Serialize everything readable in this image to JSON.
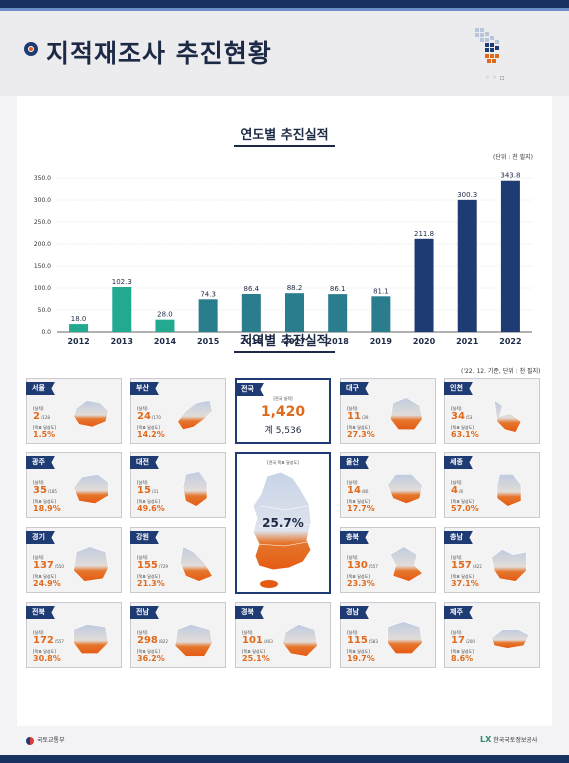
{
  "page_title": "지적재조사 추진현황",
  "section1_title": "연도별 추진실적",
  "section1_unit": "(단위 : 천 필지)",
  "section2_title": "지역별 추진실적",
  "section2_unit": "('22. 12. 기준, 단위 : 천 필지)",
  "chart_data": {
    "type": "bar",
    "categories": [
      "2012",
      "2013",
      "2014",
      "2015",
      "2016",
      "2017",
      "2018",
      "2019",
      "2020",
      "2021",
      "2022"
    ],
    "values": [
      18.0,
      102.3,
      28.0,
      74.3,
      86.4,
      88.2,
      86.1,
      81.1,
      211.8,
      300.3,
      343.8
    ],
    "value_labels": [
      "18.0",
      "102.3",
      "28.0",
      "74.3",
      "86.4",
      "88.2",
      "86.1",
      "81.1",
      "211.8",
      "300.3",
      "343.8"
    ],
    "ylim": [
      0,
      350
    ],
    "yticks": [
      "0.0",
      "50.0",
      "100.0",
      "150.0",
      "200.0",
      "250.0",
      "300.0",
      "350.0"
    ],
    "title": "연도별 추진실적",
    "colors": [
      "#22a98f",
      "#22a98f",
      "#22a98f",
      "#2a7d8c",
      "#2a7d8c",
      "#2a7d8c",
      "#2a7d8c",
      "#2a7d8c",
      "#1f3b73",
      "#1f3b73",
      "#1f3b73"
    ],
    "grid": true
  },
  "labels": {
    "record": "[실적]",
    "goal_rate": "[목표 달성도]",
    "national_record": "[전국 실적]",
    "national_goal_rate": "[전국 목표 달성도]"
  },
  "national": {
    "name": "전국",
    "record": "1,420",
    "total": "계 5,536",
    "rate": "25.7%"
  },
  "regions": [
    {
      "name": "서울",
      "value": "2",
      "total": "/128",
      "rate": "1.5%"
    },
    {
      "name": "부산",
      "value": "24",
      "total": "/170",
      "rate": "14.2%"
    },
    {
      "name": "대구",
      "value": "11",
      "total": "/39",
      "rate": "27.3%"
    },
    {
      "name": "인천",
      "value": "34",
      "total": "/53",
      "rate": "63.1%"
    },
    {
      "name": "광주",
      "value": "35",
      "total": "/185",
      "rate": "18.9%"
    },
    {
      "name": "대전",
      "value": "15",
      "total": "/31",
      "rate": "49.6%"
    },
    {
      "name": "울산",
      "value": "14",
      "total": "/80",
      "rate": "17.7%"
    },
    {
      "name": "세종",
      "value": "4",
      "total": "/8",
      "rate": "57.0%"
    },
    {
      "name": "경기",
      "value": "137",
      "total": "/550",
      "rate": "24.9%"
    },
    {
      "name": "강원",
      "value": "155",
      "total": "/729",
      "rate": "21.3%"
    },
    {
      "name": "충북",
      "value": "130",
      "total": "/557",
      "rate": "23.3%"
    },
    {
      "name": "충남",
      "value": "157",
      "total": "/422",
      "rate": "37.1%"
    },
    {
      "name": "전북",
      "value": "172",
      "total": "/557",
      "rate": "30.8%"
    },
    {
      "name": "전남",
      "value": "298",
      "total": "/822",
      "rate": "36.2%"
    },
    {
      "name": "경북",
      "value": "101",
      "total": "/403",
      "rate": "25.1%"
    },
    {
      "name": "경남",
      "value": "115",
      "total": "/583",
      "rate": "19.7%"
    },
    {
      "name": "제주",
      "value": "17",
      "total": "/200",
      "rate": "8.6%"
    }
  ],
  "footer": {
    "left": "국토교통부",
    "right_mark": "LX",
    "right": "한국국토정보공사"
  },
  "colors": {
    "navy": "#1f3b73",
    "orange": "#e06a1c",
    "teal": "#22a98f"
  }
}
